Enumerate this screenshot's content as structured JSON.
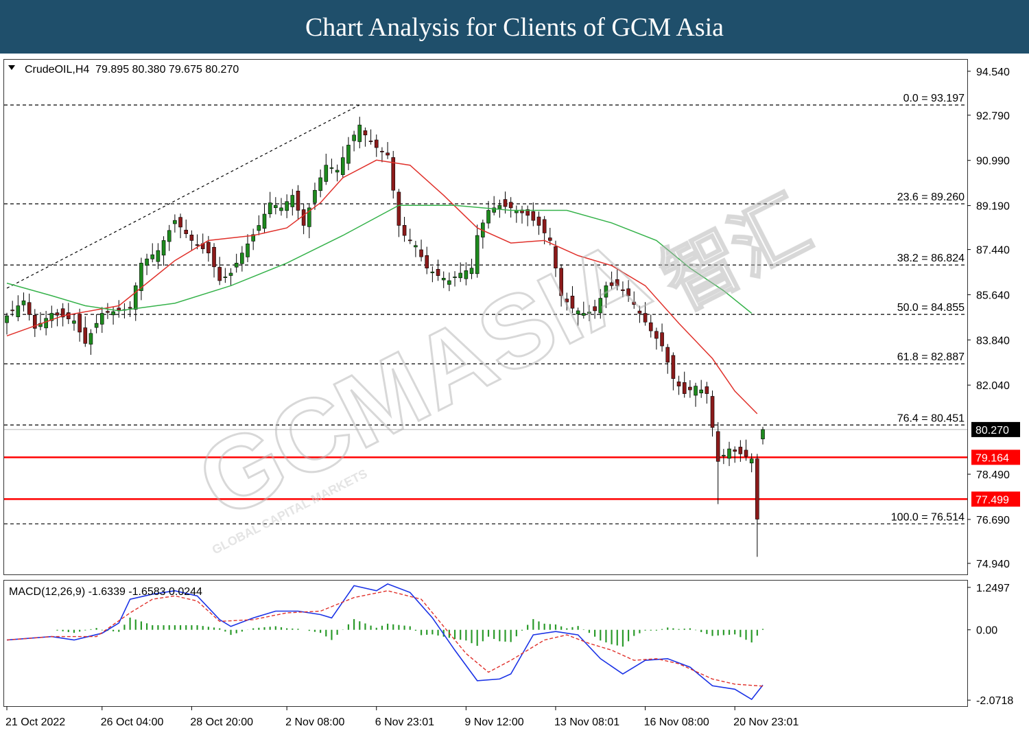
{
  "banner": {
    "title": "Chart Analysis for Clients of GCM Asia"
  },
  "header": {
    "symbol_label": "CrudeOIL,H4  79.895 80.380 79.675 80.270",
    "macd_label": "MACD(12,26,9) -1.6339 -1.6583 0.0244"
  },
  "watermark": {
    "main": "GCMASIA",
    "sub": "GLOBAL CAPITAL MARKETS",
    "chinese": "智汇"
  },
  "colors": {
    "bull_candle": "#1e8a1e",
    "bear_candle": "#8b1a1a",
    "fast_ma": "#e0302a",
    "slow_ma": "#35b24a",
    "macd_line": "#1a32e6",
    "signal_line": "#e0302a",
    "histogram": "#2a9a2a",
    "level_line": "#ff0000",
    "price_tag": "#000000"
  },
  "chart_data": [
    {
      "type": "candlestick",
      "symbol": "CrudeOIL",
      "timeframe": "H4",
      "ohlc_last": {
        "open": 79.895,
        "high": 80.38,
        "low": 79.675,
        "close": 80.27
      },
      "ylim": [
        74.5,
        95.0
      ],
      "y_ticks": [
        "94.540",
        "92.790",
        "90.990",
        "89.190",
        "87.440",
        "85.640",
        "83.840",
        "82.040",
        "78.490",
        "76.690",
        "74.940"
      ],
      "x_ticks": [
        "21 Oct 2022",
        "26 Oct 04:00",
        "28 Oct 20:00",
        "2 Nov 08:00",
        "6 Nov 23:01",
        "9 Nov 12:00",
        "13 Nov 08:01",
        "16 Nov 08:00",
        "20 Nov 23:01"
      ],
      "current_price": {
        "value": 80.27,
        "label": "80.270"
      },
      "horizontal_levels": [
        {
          "value": 79.164,
          "label": "79.164"
        },
        {
          "value": 77.499,
          "label": "77.499"
        }
      ],
      "fibonacci": [
        {
          "ratio": "0.0",
          "value": 93.197,
          "label": "0.0 = 93.197"
        },
        {
          "ratio": "23.6",
          "value": 89.26,
          "label": "23.6 = 89.260"
        },
        {
          "ratio": "38.2",
          "value": 86.824,
          "label": "38.2 = 86.824"
        },
        {
          "ratio": "50.0",
          "value": 84.855,
          "label": "50.0 = 84.855"
        },
        {
          "ratio": "61.8",
          "value": 82.887,
          "label": "61.8 = 82.887"
        },
        {
          "ratio": "76.4",
          "value": 80.451,
          "label": "76.4 = 80.451"
        },
        {
          "ratio": "100.0",
          "value": 76.514,
          "label": "100.0 = 76.514"
        }
      ],
      "trendline": [
        {
          "bar": 0,
          "value": 85.9
        },
        {
          "bar": 63,
          "value": 93.2
        }
      ],
      "close_path": [
        [
          0,
          84.8
        ],
        [
          3,
          85.4
        ],
        [
          5,
          84.3
        ],
        [
          8,
          84.9
        ],
        [
          12,
          84.6
        ],
        [
          14,
          83.7
        ],
        [
          17,
          84.9
        ],
        [
          20,
          85.0
        ],
        [
          22,
          85.1
        ],
        [
          24,
          86.9
        ],
        [
          27,
          87.4
        ],
        [
          30,
          88.6
        ],
        [
          33,
          87.8
        ],
        [
          36,
          87.3
        ],
        [
          38,
          86.2
        ],
        [
          40,
          86.5
        ],
        [
          42,
          87.3
        ],
        [
          45,
          88.4
        ],
        [
          47,
          89.3
        ],
        [
          49,
          89.1
        ],
        [
          51,
          89.6
        ],
        [
          53,
          88.4
        ],
        [
          55,
          89.8
        ],
        [
          57,
          90.8
        ],
        [
          59,
          90.6
        ],
        [
          61,
          91.6
        ],
        [
          63,
          92.4
        ],
        [
          64,
          92.0
        ],
        [
          66,
          91.5
        ],
        [
          68,
          91.2
        ],
        [
          70,
          88.4
        ],
        [
          71,
          88.0
        ],
        [
          73,
          87.6
        ],
        [
          75,
          86.7
        ],
        [
          77,
          86.4
        ],
        [
          79,
          86.2
        ],
        [
          81,
          86.5
        ],
        [
          83,
          86.7
        ],
        [
          84,
          88.0
        ],
        [
          86,
          89.0
        ],
        [
          88,
          89.2
        ],
        [
          90,
          89.1
        ],
        [
          93,
          88.8
        ],
        [
          95,
          88.4
        ],
        [
          97,
          87.8
        ],
        [
          99,
          85.6
        ],
        [
          101,
          85.1
        ],
        [
          103,
          84.9
        ],
        [
          105,
          85.0
        ],
        [
          107,
          86.0
        ],
        [
          109,
          86.0
        ],
        [
          111,
          85.6
        ],
        [
          113,
          84.9
        ],
        [
          115,
          84.2
        ],
        [
          117,
          83.6
        ],
        [
          119,
          82.3
        ],
        [
          121,
          81.7
        ],
        [
          123,
          82.0
        ],
        [
          125,
          81.7
        ],
        [
          127,
          79.0
        ],
        [
          129,
          79.5
        ],
        [
          131,
          79.3
        ],
        [
          133,
          79.1
        ],
        [
          134,
          76.7
        ],
        [
          135,
          80.27
        ]
      ],
      "fast_ma_path": [
        [
          0,
          84.0
        ],
        [
          10,
          84.8
        ],
        [
          20,
          85.2
        ],
        [
          30,
          87.0
        ],
        [
          36,
          87.8
        ],
        [
          44,
          88.0
        ],
        [
          50,
          88.3
        ],
        [
          56,
          89.3
        ],
        [
          60,
          90.3
        ],
        [
          66,
          91.0
        ],
        [
          72,
          90.8
        ],
        [
          78,
          89.6
        ],
        [
          84,
          88.3
        ],
        [
          90,
          87.7
        ],
        [
          96,
          87.8
        ],
        [
          102,
          87.2
        ],
        [
          108,
          86.8
        ],
        [
          114,
          86.0
        ],
        [
          120,
          84.5
        ],
        [
          126,
          83.1
        ],
        [
          130,
          81.8
        ],
        [
          134,
          80.9
        ]
      ],
      "slow_ma_path": [
        [
          0,
          86.1
        ],
        [
          8,
          85.6
        ],
        [
          14,
          85.2
        ],
        [
          20,
          85.0
        ],
        [
          30,
          85.3
        ],
        [
          40,
          86.0
        ],
        [
          50,
          86.9
        ],
        [
          60,
          88.0
        ],
        [
          70,
          89.2
        ],
        [
          80,
          89.2
        ],
        [
          90,
          89.0
        ],
        [
          100,
          89.0
        ],
        [
          108,
          88.5
        ],
        [
          116,
          87.8
        ],
        [
          122,
          86.7
        ],
        [
          128,
          85.8
        ],
        [
          133,
          84.9
        ]
      ]
    },
    {
      "type": "macd",
      "params": "12,26,9",
      "ylim": [
        -2.25,
        1.45
      ],
      "y_ticks": [
        "1.2497",
        "0.00",
        "-2.0718"
      ],
      "values": {
        "macd": -1.6339,
        "signal": -1.6583,
        "histogram": 0.0244
      },
      "macd_path": [
        [
          0,
          -0.3
        ],
        [
          8,
          -0.2
        ],
        [
          12,
          -0.3
        ],
        [
          17,
          -0.1
        ],
        [
          20,
          0.2
        ],
        [
          22,
          0.9
        ],
        [
          26,
          1.05
        ],
        [
          30,
          1.15
        ],
        [
          34,
          1.0
        ],
        [
          38,
          0.3
        ],
        [
          40,
          0.1
        ],
        [
          44,
          0.35
        ],
        [
          48,
          0.55
        ],
        [
          52,
          0.55
        ],
        [
          56,
          0.45
        ],
        [
          58,
          0.35
        ],
        [
          62,
          1.3
        ],
        [
          66,
          1.15
        ],
        [
          68,
          1.35
        ],
        [
          72,
          1.1
        ],
        [
          76,
          0.35
        ],
        [
          80,
          -0.6
        ],
        [
          84,
          -1.5
        ],
        [
          88,
          -1.45
        ],
        [
          90,
          -1.3
        ],
        [
          94,
          -0.15
        ],
        [
          98,
          -0.05
        ],
        [
          102,
          -0.15
        ],
        [
          106,
          -0.85
        ],
        [
          110,
          -1.3
        ],
        [
          114,
          -0.9
        ],
        [
          118,
          -0.85
        ],
        [
          122,
          -1.1
        ],
        [
          126,
          -1.65
        ],
        [
          130,
          -1.75
        ],
        [
          133,
          -2.05
        ],
        [
          135,
          -1.63
        ]
      ],
      "signal_path": [
        [
          0,
          -0.3
        ],
        [
          8,
          -0.2
        ],
        [
          16,
          -0.2
        ],
        [
          22,
          0.5
        ],
        [
          26,
          0.9
        ],
        [
          30,
          1.0
        ],
        [
          34,
          0.85
        ],
        [
          38,
          0.25
        ],
        [
          44,
          0.3
        ],
        [
          50,
          0.5
        ],
        [
          56,
          0.55
        ],
        [
          62,
          0.95
        ],
        [
          68,
          1.15
        ],
        [
          74,
          0.9
        ],
        [
          78,
          0.1
        ],
        [
          82,
          -0.7
        ],
        [
          86,
          -1.25
        ],
        [
          90,
          -0.9
        ],
        [
          96,
          -0.3
        ],
        [
          100,
          -0.15
        ],
        [
          104,
          -0.4
        ],
        [
          108,
          -0.6
        ],
        [
          112,
          -0.9
        ],
        [
          116,
          -0.85
        ],
        [
          120,
          -1.0
        ],
        [
          126,
          -1.45
        ],
        [
          130,
          -1.6
        ],
        [
          135,
          -1.66
        ]
      ]
    }
  ]
}
